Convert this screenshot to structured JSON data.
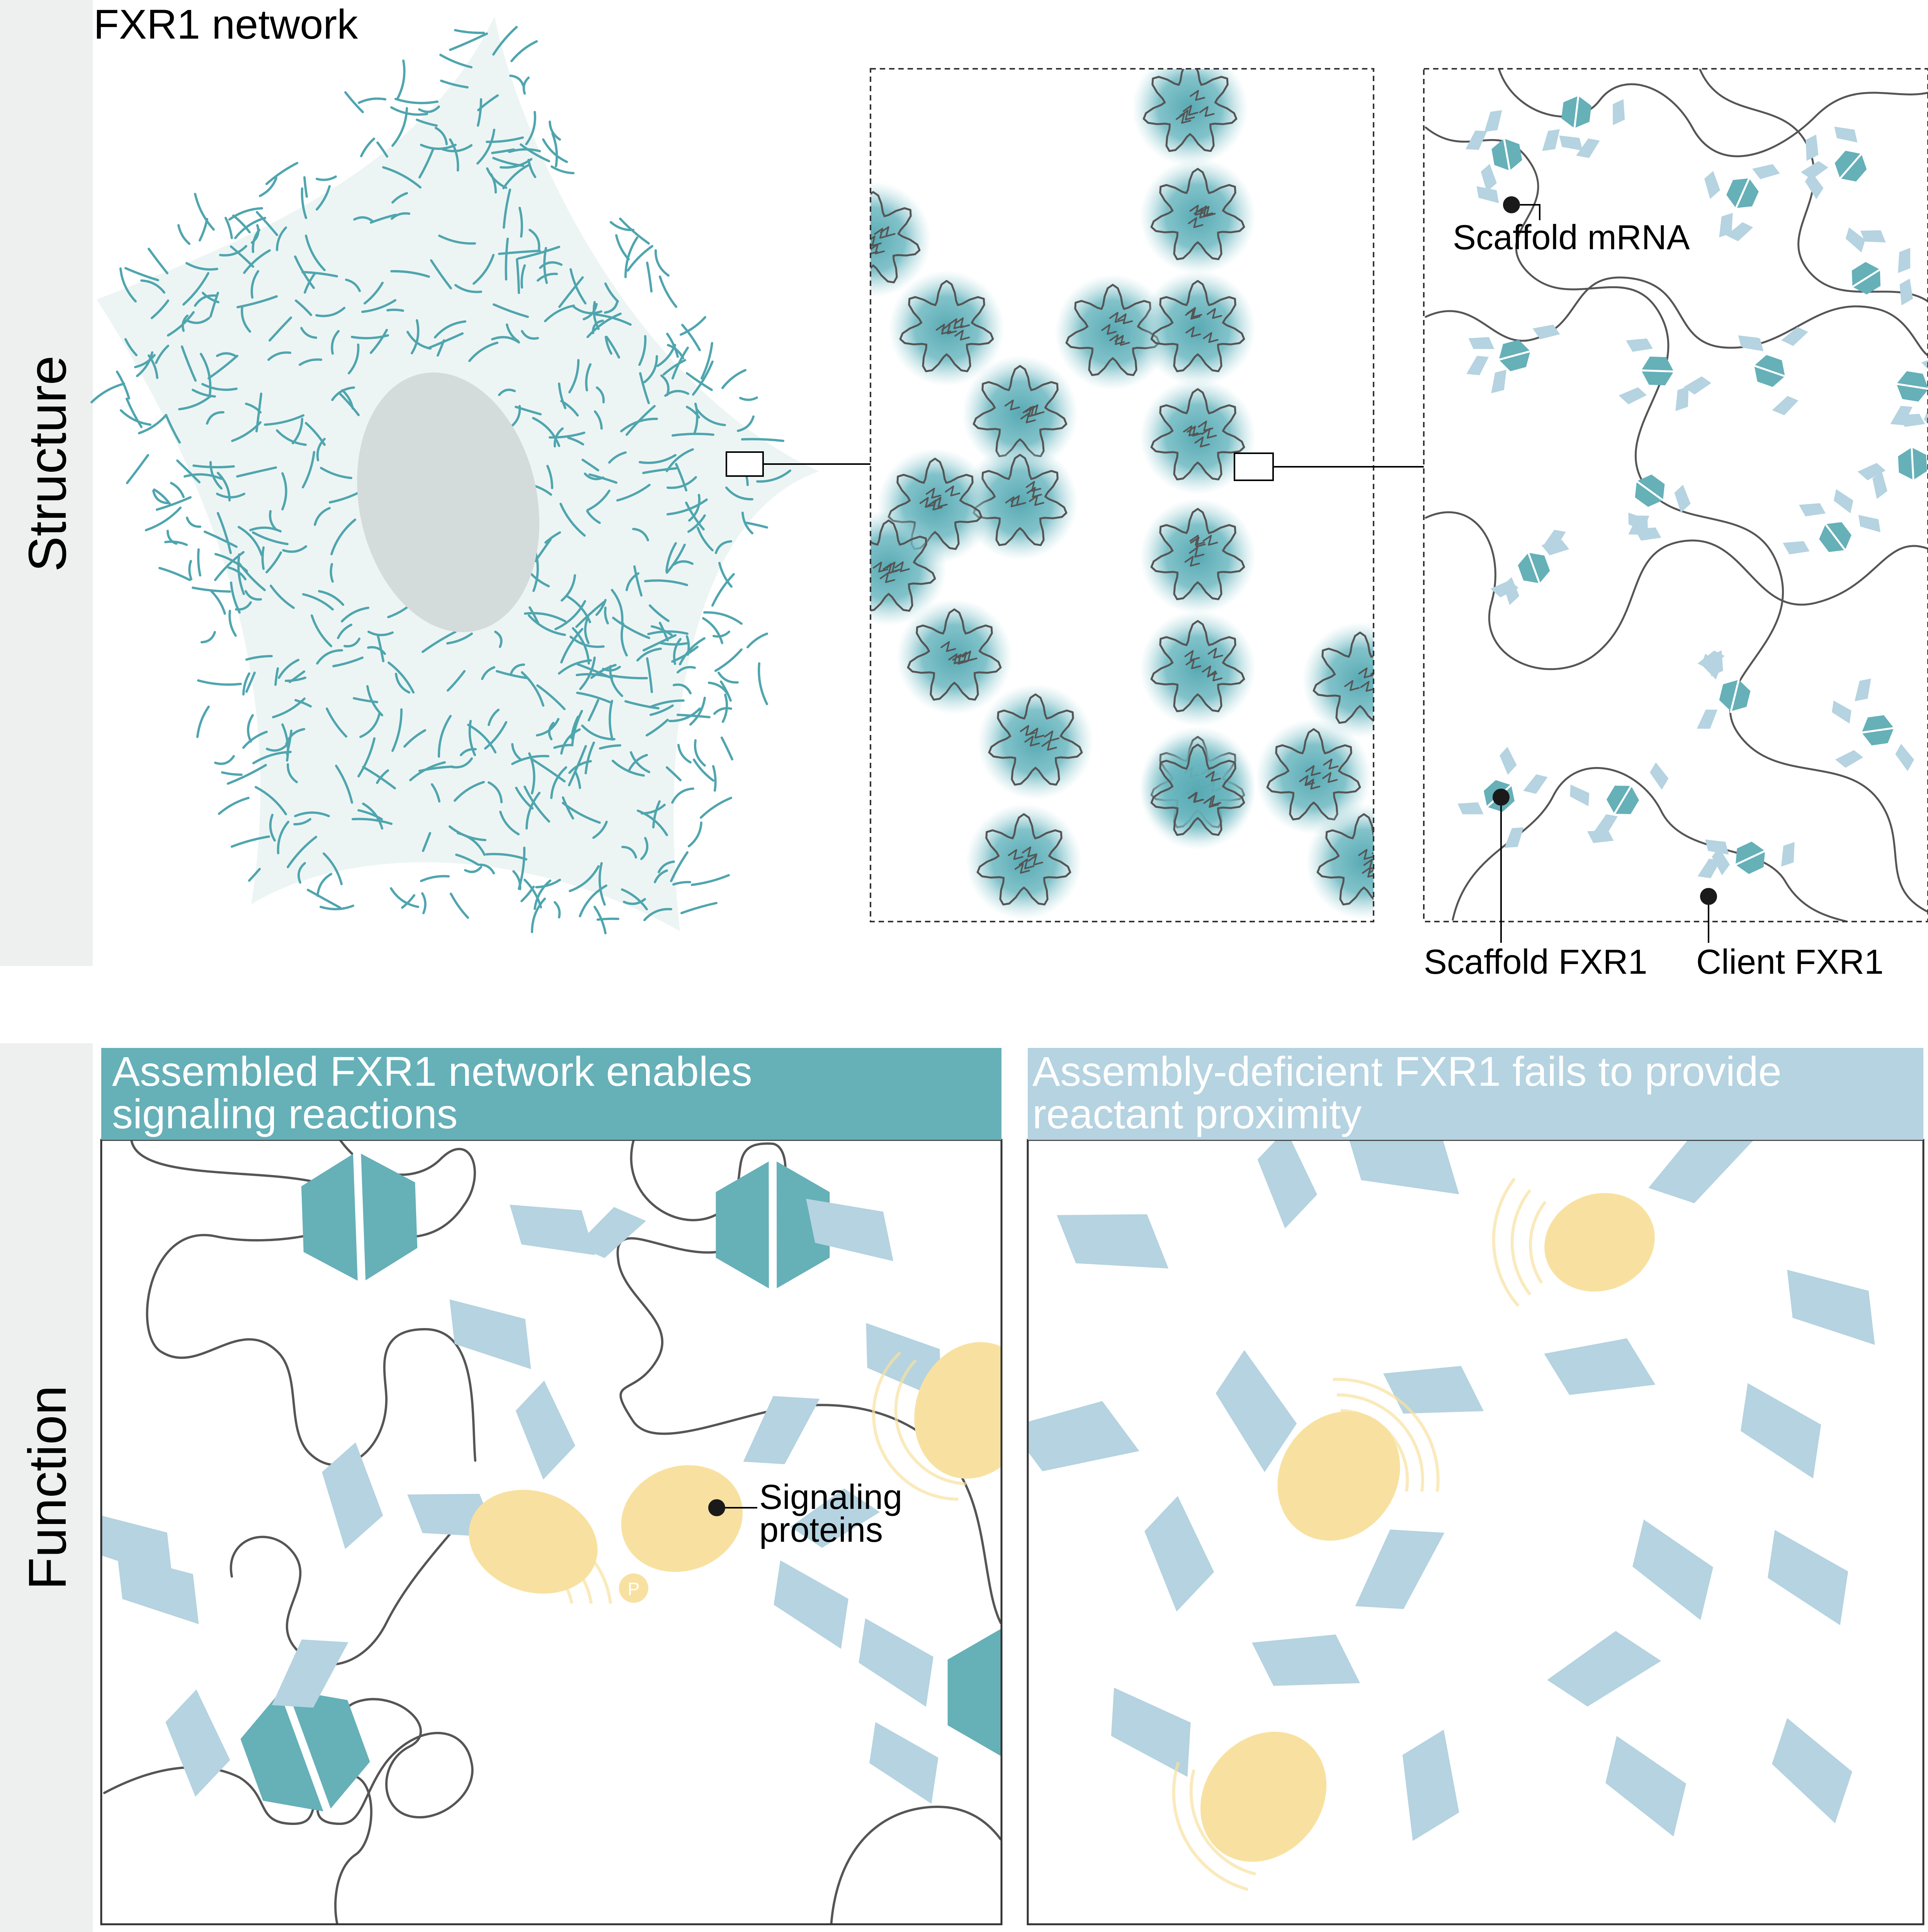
{
  "colors": {
    "teal": "#66b0b8",
    "teal_dark": "#4e9ea7",
    "light_blue": "#b5d3e0",
    "cell_fill": "#edf5f4",
    "nucleus": "#d4dcdb",
    "signal": "#f8e1a0",
    "band": "#edf0ee",
    "rna": "#555555"
  },
  "sections": {
    "structure_label": "Structure",
    "function_label": "Function"
  },
  "structure": {
    "title": "FXR1 network",
    "callouts": {
      "scaffold_mrna": "Scaffold mRNA",
      "scaffold_fxr1": "Scaffold FXR1",
      "client_fxr1": "Client FXR1"
    }
  },
  "function": {
    "left_panel": {
      "title_line1": "Assembled FXR1 network enables",
      "title_line2": "signaling reactions",
      "callout_line1": "Signaling",
      "callout_line2": "proteins",
      "phospho_label": "P"
    },
    "right_panel": {
      "title_line1": "Assembly-deficient FXR1 fails to provide",
      "title_line2": "reactant proximity"
    }
  },
  "icons": [
    "cell-icon",
    "nucleus-icon",
    "granule-icon",
    "fxr1-dimer-icon",
    "client-fxr1-icon",
    "signaling-protein-icon",
    "phosphate-icon"
  ]
}
